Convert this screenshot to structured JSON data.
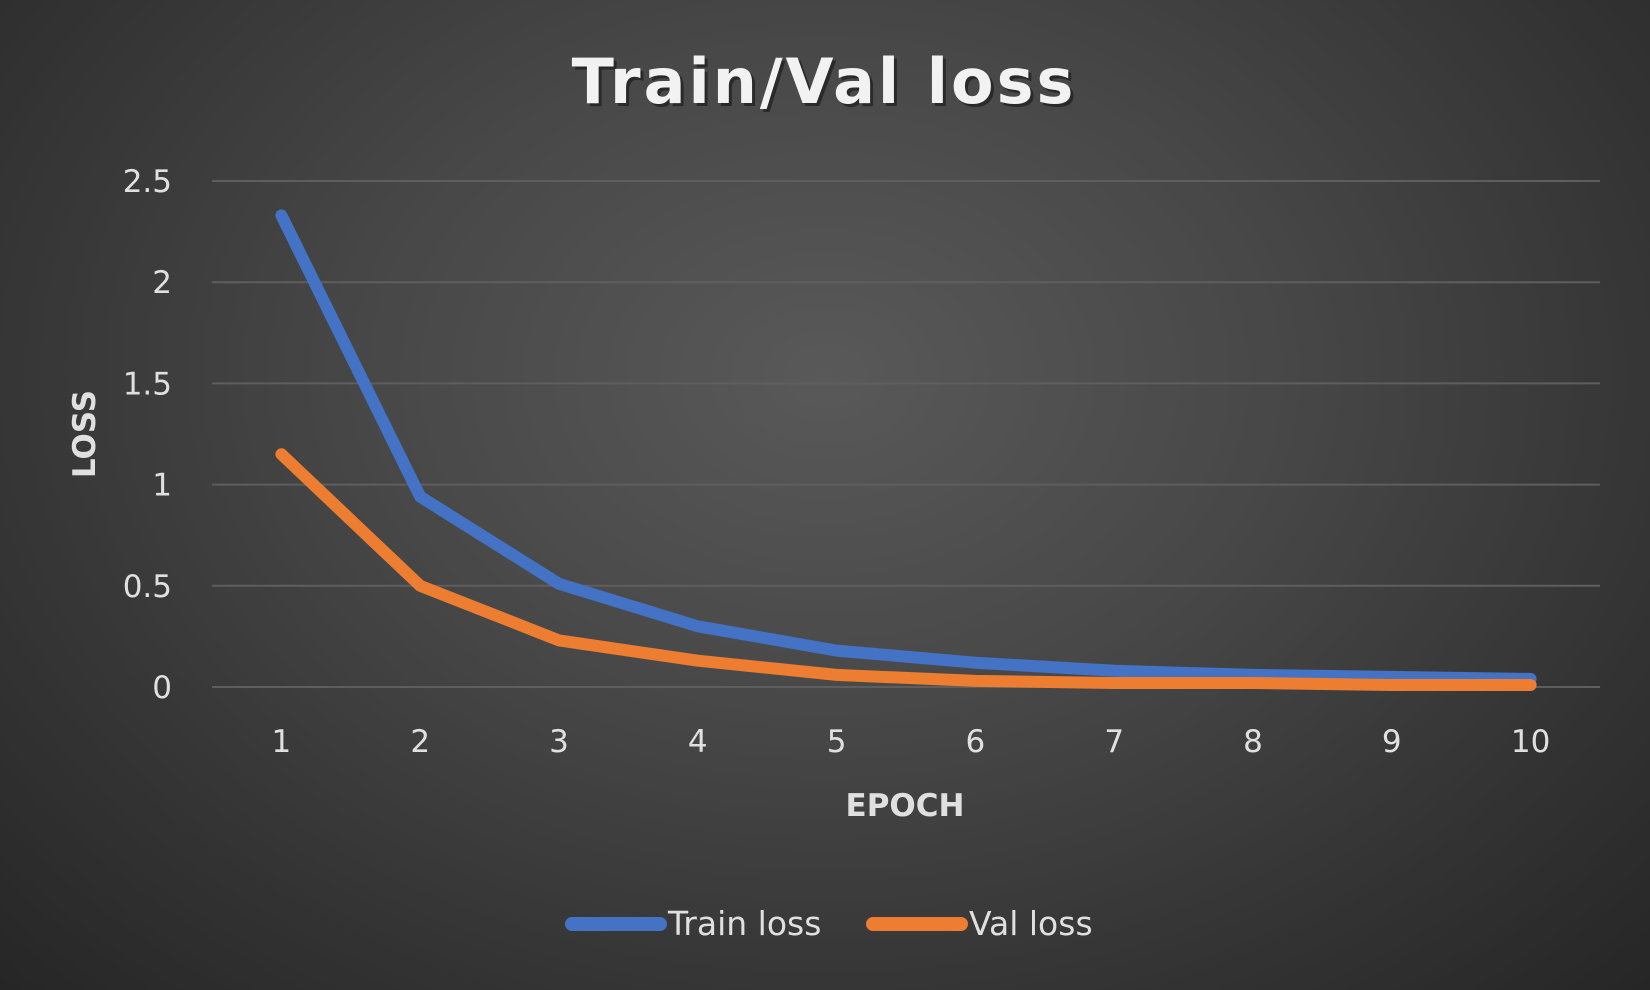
{
  "chart_data": {
    "type": "line",
    "title": "Train/Val loss",
    "xlabel": "EPOCH",
    "ylabel": "LOSS",
    "categories": [
      "1",
      "2",
      "3",
      "4",
      "5",
      "6",
      "7",
      "8",
      "9",
      "10"
    ],
    "ylim": [
      0,
      2.5
    ],
    "yticks": [
      "0",
      "0.5",
      "1",
      "1.5",
      "2",
      "2.5"
    ],
    "grid": true,
    "legend_position": "bottom",
    "series": [
      {
        "name": "Train loss",
        "color": "#4472C4",
        "values": [
          2.33,
          0.94,
          0.51,
          0.3,
          0.18,
          0.12,
          0.08,
          0.06,
          0.05,
          0.04
        ]
      },
      {
        "name": "Val loss",
        "color": "#ED7D31",
        "values": [
          1.15,
          0.5,
          0.23,
          0.13,
          0.06,
          0.03,
          0.02,
          0.02,
          0.01,
          0.01
        ]
      }
    ]
  }
}
